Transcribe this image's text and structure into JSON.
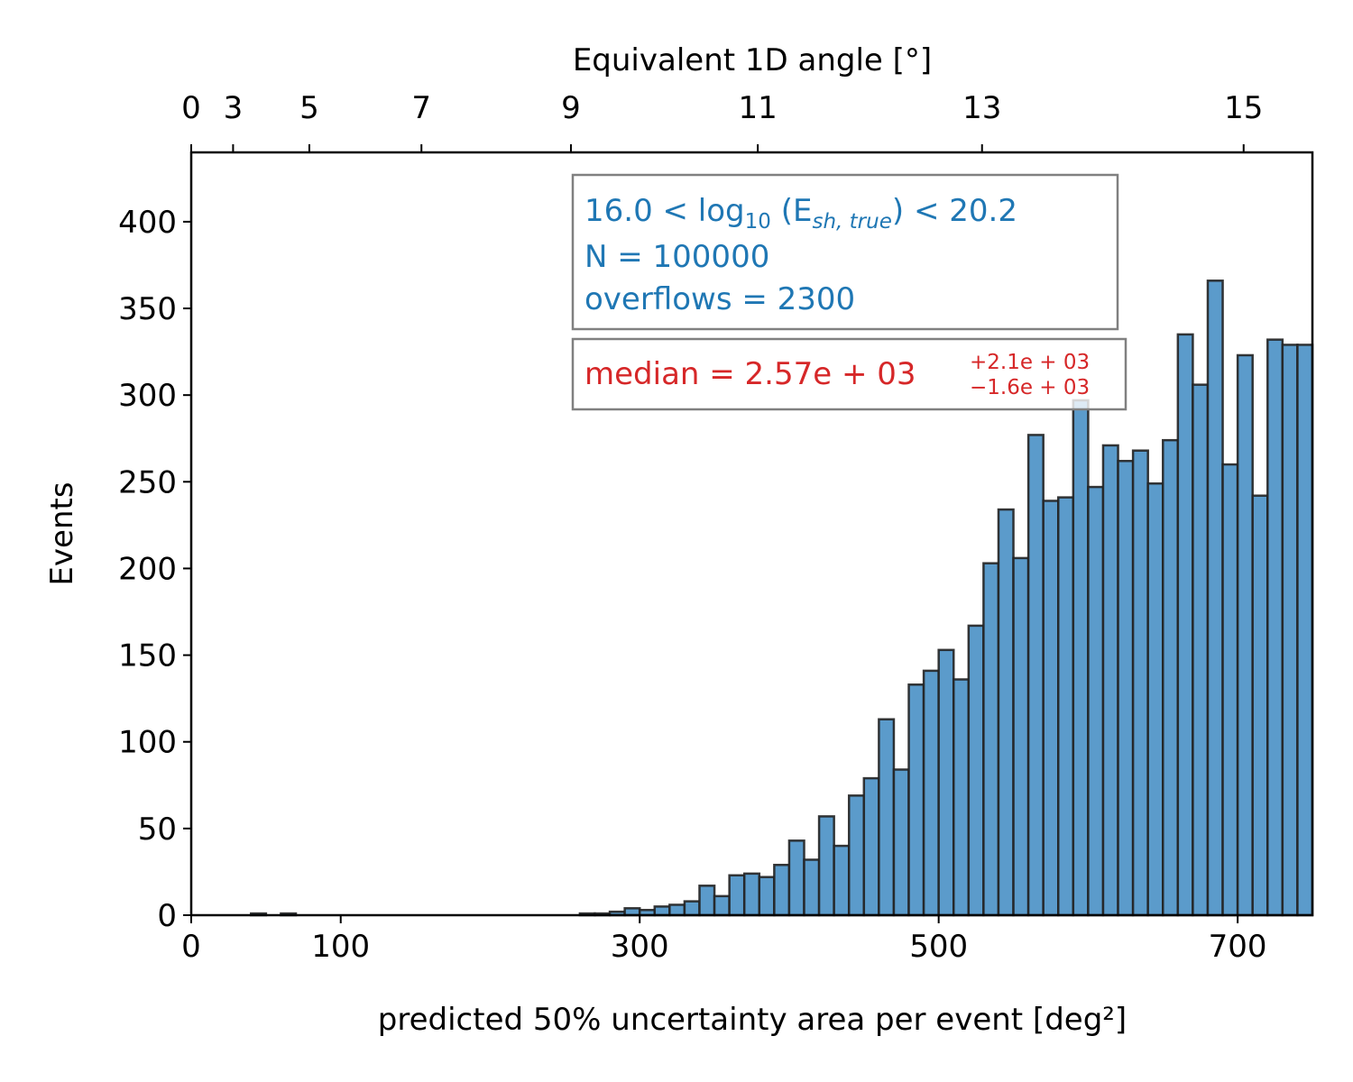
{
  "chart_data": {
    "type": "bar",
    "title": "",
    "xlabel": "predicted 50% uncertainty area per event [deg²]",
    "ylabel": "Events",
    "top_xlabel": "Equivalent 1D angle [°]",
    "xlim": [
      0,
      750
    ],
    "ylim": [
      0,
      440
    ],
    "bin_width": 10,
    "xticks": [
      0,
      100,
      300,
      500,
      700
    ],
    "yticks": [
      0,
      50,
      100,
      150,
      200,
      250,
      300,
      350,
      400
    ],
    "top_ticks": [
      {
        "label": "0",
        "x": 0
      },
      {
        "label": "3",
        "x": 28
      },
      {
        "label": "5",
        "x": 79
      },
      {
        "label": "7",
        "x": 154
      },
      {
        "label": "9",
        "x": 254
      },
      {
        "label": "11",
        "x": 379
      },
      {
        "label": "13",
        "x": 529
      },
      {
        "label": "15",
        "x": 704
      }
    ],
    "bin_starts": [
      40,
      60,
      260,
      270,
      280,
      290,
      300,
      310,
      320,
      330,
      340,
      350,
      360,
      370,
      380,
      390,
      400,
      410,
      420,
      430,
      440,
      450,
      460,
      470,
      480,
      490,
      500,
      510,
      520,
      530,
      540,
      550,
      560,
      570,
      580,
      590,
      600,
      610,
      620,
      630,
      640,
      650,
      660,
      670,
      680,
      690,
      700,
      710,
      720,
      730,
      740
    ],
    "values": [
      1,
      1,
      1,
      1,
      2,
      4,
      3,
      5,
      6,
      8,
      17,
      11,
      23,
      24,
      22,
      29,
      43,
      32,
      57,
      40,
      69,
      79,
      113,
      84,
      133,
      141,
      153,
      136,
      167,
      203,
      234,
      206,
      277,
      239,
      241,
      297,
      247,
      271,
      262,
      268,
      249,
      274,
      335,
      306,
      366,
      260,
      323,
      242,
      332,
      329,
      329
    ],
    "bar_color": "#5b9bcb",
    "edge_color": "#222222",
    "info_box": {
      "line1_pre": "16.0 < log",
      "line1_sub": "10",
      "line1_mid": " (E",
      "line1_sub2": "sh, true",
      "line1_post": ") < 20.2",
      "line2": "N = 100000",
      "line3": "overflows = 2300",
      "color": "#1f77b4"
    },
    "median_box": {
      "text": "median = 2.57e + 03",
      "sup": "+2.1e + 03",
      "sub": "−1.6e + 03",
      "color": "#d62728"
    }
  }
}
